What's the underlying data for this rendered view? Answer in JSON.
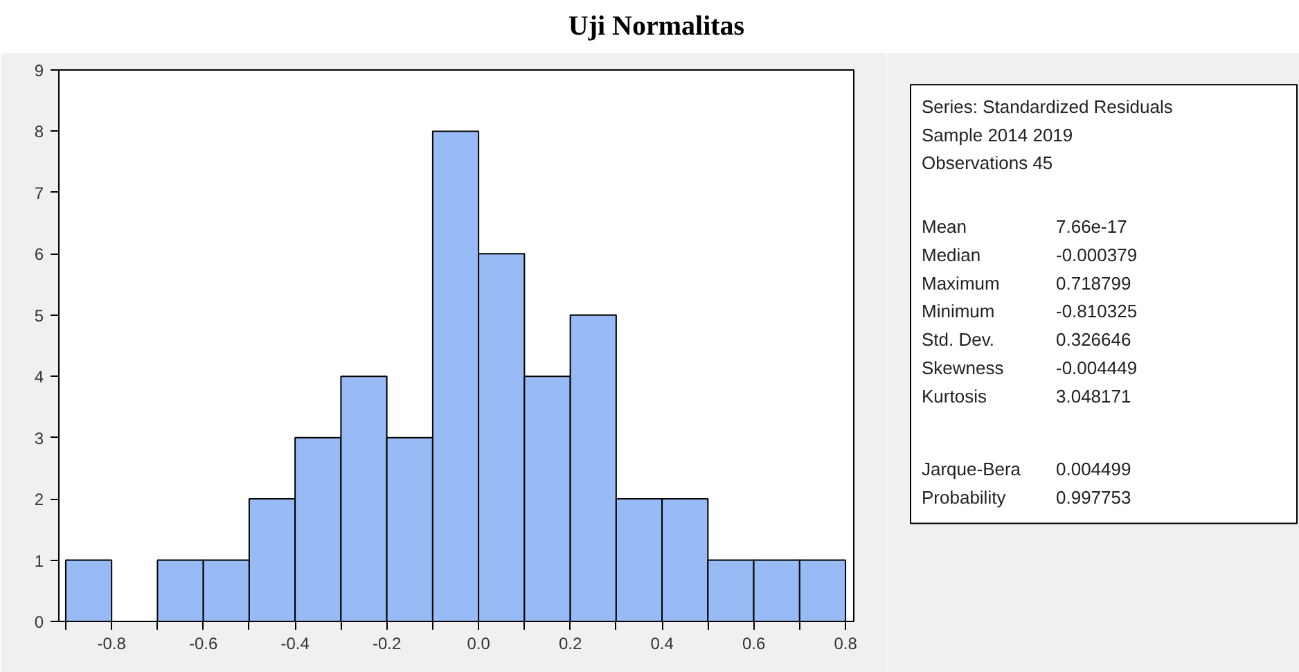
{
  "chart_data": {
    "type": "histogram",
    "title": "Uji Normalitas",
    "bins": [
      -0.9,
      -0.8,
      -0.7,
      -0.6,
      -0.5,
      -0.4,
      -0.3,
      -0.2,
      -0.1,
      0.0,
      0.1,
      0.2,
      0.3,
      0.4,
      0.5,
      0.6,
      0.7,
      0.8
    ],
    "values": [
      1,
      0,
      1,
      1,
      2,
      3,
      4,
      3,
      8,
      6,
      4,
      5,
      2,
      2,
      1,
      1,
      1
    ],
    "color": "#99bbf5",
    "xlim": [
      -0.915,
      0.818
    ],
    "xticks": [
      {
        "value": -0.9,
        "label": null
      },
      -0.8,
      {
        "value": -0.7,
        "label": null
      },
      -0.6,
      {
        "value": -0.5,
        "label": null
      },
      -0.4,
      {
        "value": -0.3,
        "label": null
      },
      -0.2,
      {
        "value": -0.1,
        "label": null
      },
      {
        "value": 0.0,
        "label": "0.0"
      },
      {
        "value": 0.1,
        "label": null
      },
      0.2,
      {
        "value": 0.3,
        "label": null
      },
      0.4,
      {
        "value": 0.5,
        "label": null
      },
      0.6,
      {
        "value": 0.7,
        "label": null
      },
      0.8
    ],
    "ylim": [
      0,
      9
    ],
    "yticks": [
      0,
      1,
      2,
      3,
      4,
      5,
      6,
      7,
      8,
      9
    ],
    "annotations": [
      "Series: Standardized Residuals",
      "Sample 2014 2019",
      "Observations 45",
      "Mean",
      "7.66e-17",
      "Median",
      "-0.000379",
      "Maximum",
      "0.718799",
      "Minimum",
      "-0.810325",
      "Std. Dev.",
      "0.326646",
      "Skewness",
      "-0.004449",
      "Kurtosis",
      "3.048171",
      "Jarque-Bera",
      "0.004499",
      "Probability",
      "0.997753"
    ]
  }
}
